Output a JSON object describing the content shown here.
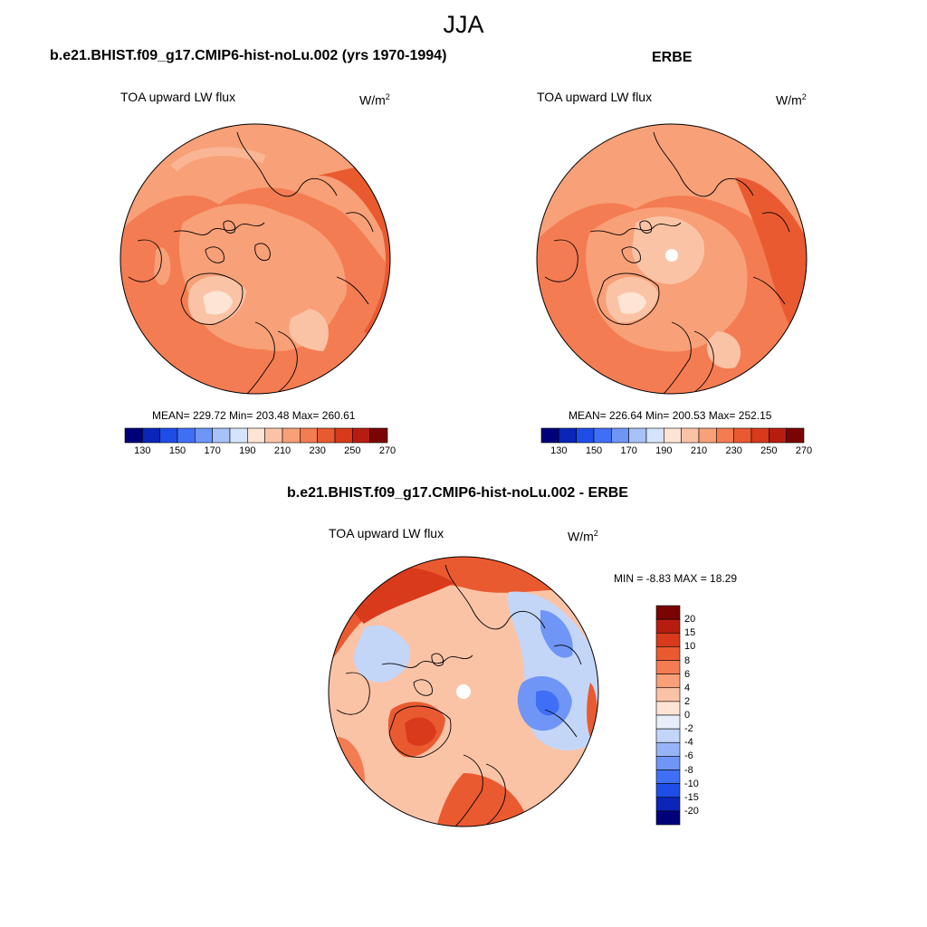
{
  "figure": {
    "title": "JJA",
    "colors": {
      "ocean_warm": "#f06a3a",
      "land_mid": "#f5a07a",
      "light": "#fcd7c3",
      "coast": "#000000"
    }
  },
  "panels": [
    {
      "id": "model",
      "title": "b.e21.BHIST.f09_g17.CMIP6-hist-noLu.002 (yrs 1970-1994)",
      "variable": "TOA upward LW flux",
      "units": "W/m",
      "units_sup": "2",
      "stats": "MEAN= 229.72  Min= 203.48  Max= 260.61",
      "colorbar": {
        "labels": [
          "130",
          "150",
          "170",
          "190",
          "210",
          "230",
          "250",
          "270"
        ],
        "colors": [
          "#00007a",
          "#0a25b8",
          "#1f4de8",
          "#3f6ff5",
          "#6f95f7",
          "#a6c2f7",
          "#d6e4fb",
          "#fde4d4",
          "#fbc3a6",
          "#f8a078",
          "#f47c52",
          "#ea5a30",
          "#d83a1b",
          "#b71d0f",
          "#7a0404"
        ]
      }
    },
    {
      "id": "obs",
      "title": "ERBE",
      "variable": "TOA upward LW flux",
      "units": "W/m",
      "units_sup": "2",
      "stats": "MEAN= 226.64  Min= 200.53  Max= 252.15",
      "colorbar": {
        "labels": [
          "130",
          "150",
          "170",
          "190",
          "210",
          "230",
          "250",
          "270"
        ],
        "colors": [
          "#00007a",
          "#0a25b8",
          "#1f4de8",
          "#3f6ff5",
          "#6f95f7",
          "#a6c2f7",
          "#d6e4fb",
          "#fde4d4",
          "#fbc3a6",
          "#f8a078",
          "#f47c52",
          "#ea5a30",
          "#d83a1b",
          "#b71d0f",
          "#7a0404"
        ]
      }
    },
    {
      "id": "diff",
      "title": "b.e21.BHIST.f09_g17.CMIP6-hist-noLu.002 - ERBE",
      "variable": "TOA upward LW flux",
      "units": "W/m",
      "units_sup": "2",
      "stats": "MIN =  -8.83 MAX =  18.29",
      "colorbar": {
        "labels": [
          "20",
          "15",
          "10",
          "8",
          "6",
          "4",
          "2",
          "0",
          "-2",
          "-4",
          "-6",
          "-8",
          "-10",
          "-15",
          "-20"
        ],
        "colors": [
          "#7a0404",
          "#b71d0f",
          "#d83a1b",
          "#ea5a30",
          "#f47c52",
          "#f8a078",
          "#fbc3a6",
          "#fde4d4",
          "#e8effb",
          "#c3d6f8",
          "#97b5f6",
          "#6f95f7",
          "#3f6ff5",
          "#1f4de8",
          "#0a25b8",
          "#00007a"
        ]
      }
    }
  ]
}
